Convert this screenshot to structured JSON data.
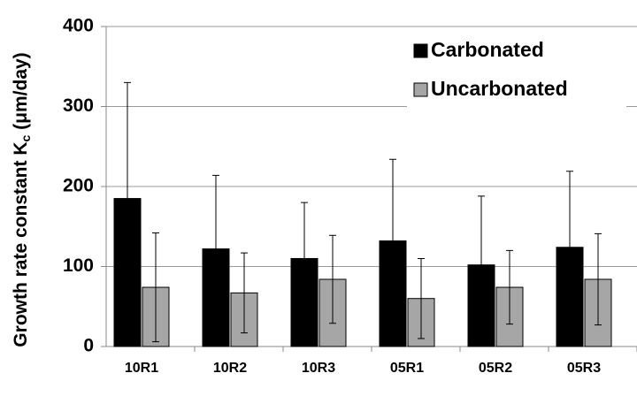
{
  "chart_data": {
    "type": "bar",
    "y_label_parts": [
      "Growth rate constant K",
      "c",
      " (μm/day)"
    ],
    "categories": [
      "10R1",
      "10R2",
      "10R3",
      "05R1",
      "05R2",
      "05R3"
    ],
    "series": [
      {
        "name": "Carbonated",
        "color": "#000000",
        "values": [
          185,
          122,
          110,
          132,
          102,
          124
        ],
        "errors": [
          145,
          92,
          70,
          102,
          86,
          95
        ]
      },
      {
        "name": "Uncarbonated",
        "color": "#a6a6a6",
        "values": [
          74,
          67,
          84,
          60,
          74,
          84
        ],
        "errors": [
          68,
          50,
          55,
          50,
          46,
          57
        ]
      }
    ],
    "ylim": [
      0,
      400
    ],
    "yticks": [
      0,
      100,
      200,
      300,
      400
    ],
    "grid": true,
    "legend": "upper right"
  }
}
